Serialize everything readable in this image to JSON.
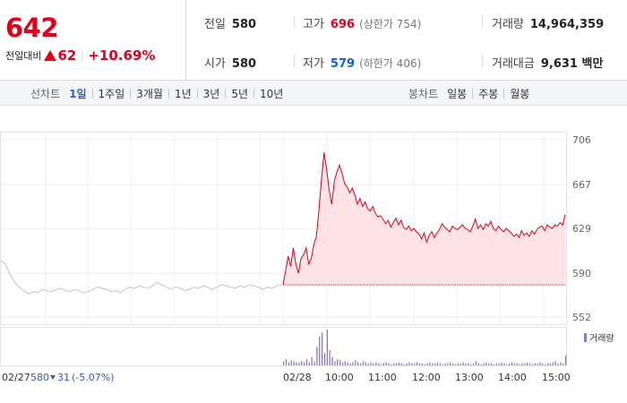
{
  "quote": {
    "price": "642",
    "change_label": "전일대비",
    "change_abs": "62",
    "change_pct": "+10.69%"
  },
  "stats": {
    "prev_close": {
      "label": "전일",
      "value": "580"
    },
    "high": {
      "label": "고가",
      "value": "696",
      "sub": "(상한가 754)"
    },
    "volume": {
      "label": "거래량",
      "value": "14,964,359"
    },
    "open": {
      "label": "시가",
      "value": "580"
    },
    "low": {
      "label": "저가",
      "value": "579",
      "sub": "(하한가 406)"
    },
    "trade_value": {
      "label": "거래대금",
      "value": "9,631 백만"
    }
  },
  "tabs": {
    "line_chart_title": "선차트",
    "line_chart_tabs": [
      "1일",
      "1주일",
      "3개월",
      "1년",
      "3년",
      "5년",
      "10년"
    ],
    "active_line_tab": 0,
    "candle_chart_title": "봉차트",
    "candle_chart_tabs": [
      "일봉",
      "주봉",
      "월봉"
    ]
  },
  "colors": {
    "up": "#e0001b",
    "down": "#1160d6",
    "prev_day_line": "#c4c4c4",
    "fill": "#fde3e6",
    "volume_bar": "#8b77c4"
  },
  "chart_data": {
    "type": "line",
    "y_ticks": [
      "706",
      "667",
      "629",
      "590",
      "552"
    ],
    "ylim": [
      552,
      706
    ],
    "x_tick_labels": [
      "10:00",
      "11:00",
      "12:00",
      "13:00",
      "14:00",
      "15:00"
    ],
    "prev_day_label": "02/27",
    "prev_day_summary": {
      "close": "580",
      "change": "31",
      "pct": "(-5.07%)"
    },
    "today_label": "02/28",
    "base_price": 580,
    "volume_legend": "거래량",
    "prev_day_series": [
      601,
      598,
      589,
      582,
      578,
      575,
      572,
      574,
      573,
      576,
      575,
      574,
      576,
      577,
      575,
      574,
      576,
      575,
      573,
      574,
      576,
      578,
      577,
      576,
      574,
      575,
      573,
      576,
      578,
      577,
      579,
      578,
      577,
      579,
      582,
      580,
      578,
      576,
      578,
      577,
      575,
      576,
      578,
      577,
      579,
      578,
      576,
      578,
      580,
      579,
      578,
      577,
      579,
      578,
      580,
      579,
      578,
      576,
      578,
      577,
      579,
      580
    ],
    "today_series": [
      580,
      592,
      605,
      596,
      612,
      598,
      590,
      603,
      606,
      612,
      598,
      603,
      615,
      622,
      645,
      672,
      695,
      680,
      662,
      650,
      670,
      678,
      684,
      677,
      668,
      665,
      660,
      664,
      658,
      650,
      655,
      648,
      652,
      646,
      644,
      648,
      642,
      639,
      640,
      637,
      633,
      636,
      630,
      634,
      638,
      632,
      636,
      630,
      628,
      631,
      627,
      629,
      626,
      624,
      620,
      625,
      617,
      623,
      626,
      621,
      625,
      628,
      633,
      630,
      628,
      626,
      631,
      629,
      628,
      630,
      632,
      629,
      628,
      626,
      631,
      637,
      629,
      632,
      628,
      633,
      631,
      635,
      629,
      627,
      631,
      628,
      626,
      629,
      627,
      625,
      622,
      624,
      621,
      627,
      623,
      625,
      622,
      627,
      624,
      628,
      630,
      631,
      627,
      632,
      630,
      629,
      632,
      631,
      634,
      632,
      641
    ],
    "today_volume": [
      4,
      6,
      3,
      5,
      4,
      3,
      3,
      4,
      3,
      6,
      3,
      8,
      4,
      18,
      28,
      32,
      12,
      35,
      15,
      8,
      4,
      6,
      5,
      3,
      4,
      3,
      2,
      3,
      5,
      3,
      2,
      4,
      3,
      2,
      3,
      2,
      3,
      2,
      1,
      2,
      3,
      2,
      1,
      2,
      2,
      3,
      2,
      1,
      2,
      3,
      2,
      2,
      3,
      2,
      2,
      1,
      2,
      3,
      2,
      2,
      3,
      2,
      1,
      2,
      2,
      3,
      2,
      1,
      2,
      2,
      3,
      2,
      2,
      1,
      2,
      4,
      2,
      1,
      2,
      3,
      2,
      2,
      1,
      2,
      2,
      3,
      2,
      1,
      2,
      3,
      2,
      2,
      1,
      2,
      2,
      3,
      2,
      1,
      2,
      2,
      3,
      2,
      1,
      2,
      2,
      3,
      4,
      2,
      3,
      2,
      10
    ]
  }
}
